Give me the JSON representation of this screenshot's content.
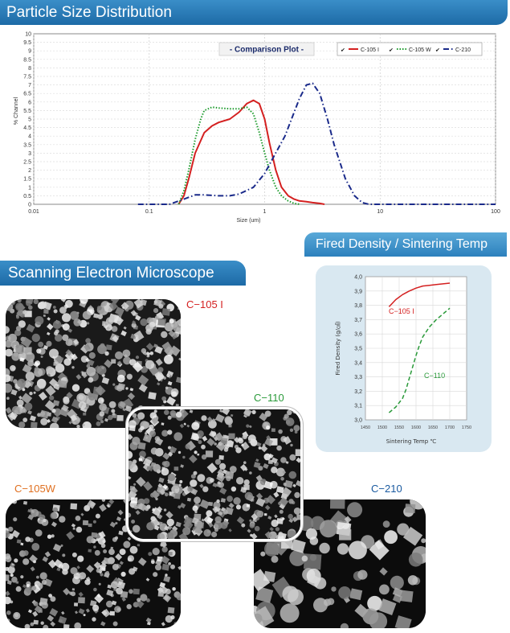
{
  "banners": {
    "psd": "Particle Size Distribution",
    "sem": "Scanning Electron Microscope",
    "fired": "Fired Density / Sintering Temp"
  },
  "colors": {
    "banner_blue": "#1d6aa6",
    "c105i": "#d42020",
    "c105w": "#1a9a2a",
    "c210": "#1a2a8a",
    "c110": "#2a9a3a",
    "c105w_label": "#e07020",
    "c210_label": "#1a5aa0"
  },
  "chart_data": [
    {
      "type": "line",
      "title": "- Comparison Plot -",
      "xlabel": "Size (um)",
      "ylabel": "% Channel",
      "xscale": "log",
      "xlim": [
        0.01,
        100
      ],
      "ylim": [
        0,
        10
      ],
      "xticks": [
        "0.01",
        "0.1",
        "1",
        "10",
        "100"
      ],
      "yticks": [
        "0",
        "0.5",
        "1",
        "1.5",
        "2",
        "2.5",
        "3",
        "3.5",
        "4",
        "4.5",
        "5",
        "5.5",
        "6",
        "6.5",
        "7",
        "7.5",
        "8",
        "8.5",
        "9",
        "9.5",
        "10"
      ],
      "grid": true,
      "legend": "top-right",
      "series": [
        {
          "name": "C-105 I",
          "style": "solid",
          "x": [
            0.18,
            0.2,
            0.22,
            0.25,
            0.3,
            0.35,
            0.4,
            0.5,
            0.6,
            0.7,
            0.8,
            0.9,
            1.0,
            1.1,
            1.25,
            1.4,
            1.6,
            1.8,
            2.0,
            2.3,
            2.6,
            3.0,
            3.3
          ],
          "y": [
            0,
            0.5,
            1.5,
            3.0,
            4.2,
            4.6,
            4.8,
            5.0,
            5.4,
            5.9,
            6.1,
            5.9,
            5.0,
            3.6,
            2.0,
            1.0,
            0.5,
            0.3,
            0.2,
            0.15,
            0.1,
            0.05,
            0
          ]
        },
        {
          "name": "C-105 W",
          "style": "dotted",
          "x": [
            0.18,
            0.2,
            0.22,
            0.25,
            0.28,
            0.3,
            0.35,
            0.4,
            0.5,
            0.6,
            0.7,
            0.8,
            0.9,
            1.0,
            1.1,
            1.25,
            1.4,
            1.6,
            1.8,
            2.0
          ],
          "y": [
            0,
            0.8,
            2.0,
            3.8,
            5.0,
            5.5,
            5.7,
            5.65,
            5.6,
            5.6,
            5.7,
            5.3,
            4.2,
            3.0,
            2.0,
            1.0,
            0.5,
            0.2,
            0.05,
            0
          ]
        },
        {
          "name": "C-210",
          "style": "dashdot",
          "x": [
            0.08,
            0.15,
            0.2,
            0.25,
            0.3,
            0.4,
            0.5,
            0.6,
            0.8,
            1.0,
            1.2,
            1.5,
            2.0,
            2.3,
            2.6,
            3.0,
            3.5,
            4.0,
            5.0,
            6.0,
            7.0,
            8.0,
            100
          ],
          "y": [
            0,
            0,
            0.3,
            0.55,
            0.55,
            0.5,
            0.5,
            0.6,
            1.0,
            1.8,
            2.8,
            4.0,
            6.2,
            7.0,
            7.1,
            6.5,
            5.0,
            3.5,
            1.5,
            0.5,
            0.1,
            0,
            0
          ]
        }
      ]
    },
    {
      "type": "line",
      "title": "",
      "xlabel": "Sintering Temp ℃",
      "ylabel": "Fired Density (g/㎤)",
      "xlim": [
        1450,
        1750
      ],
      "ylim": [
        3.0,
        4.0
      ],
      "xticks": [
        "1450",
        "1500",
        "1550",
        "1600",
        "1650",
        "1700",
        "1750"
      ],
      "yticks": [
        "3,0",
        "3,1",
        "3,2",
        "3,3",
        "3,4",
        "3,5",
        "3,6",
        "3,7",
        "3,8",
        "3,9",
        "4,0"
      ],
      "series": [
        {
          "name": "C-105 I",
          "style": "solid",
          "x": [
            1520,
            1540,
            1560,
            1580,
            1600,
            1620,
            1640,
            1660,
            1680,
            1700
          ],
          "y": [
            3.79,
            3.84,
            3.875,
            3.9,
            3.92,
            3.935,
            3.94,
            3.945,
            3.95,
            3.955
          ]
        },
        {
          "name": "C-110",
          "style": "dashed",
          "x": [
            1520,
            1540,
            1560,
            1570,
            1580,
            1590,
            1600,
            1610,
            1620,
            1640,
            1660,
            1680,
            1700
          ],
          "y": [
            3.05,
            3.09,
            3.15,
            3.21,
            3.29,
            3.37,
            3.45,
            3.52,
            3.58,
            3.65,
            3.7,
            3.74,
            3.78
          ]
        }
      ]
    }
  ],
  "sem_images": [
    {
      "label": "C−105 I"
    },
    {
      "label": "C−110"
    },
    {
      "label": "C−105W"
    },
    {
      "label": "C−210"
    }
  ]
}
